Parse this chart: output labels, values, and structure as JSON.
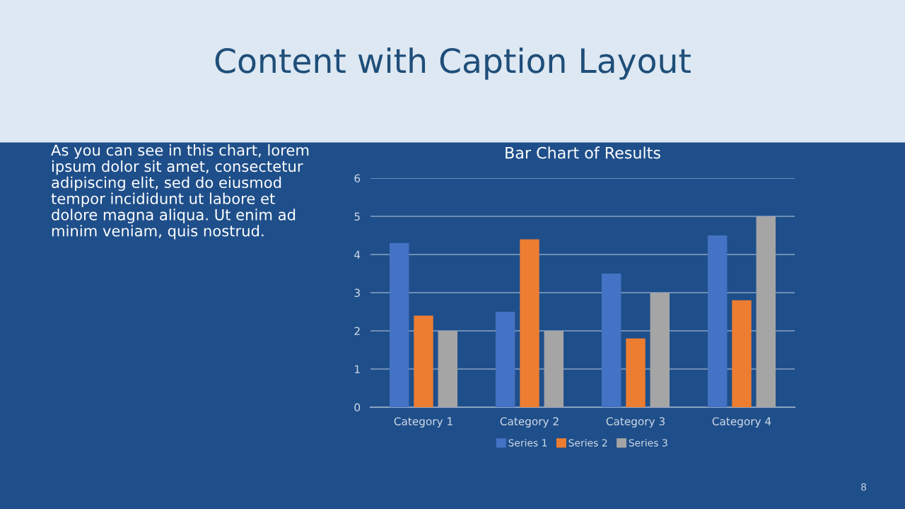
{
  "chart_data": {
    "type": "bar",
    "title": "Bar Chart of Results",
    "categories": [
      "Category 1",
      "Category 2",
      "Category 3",
      "Category 4"
    ],
    "series": [
      {
        "name": "Series 1",
        "color": "#4472c4",
        "values": [
          4.3,
          2.5,
          3.5,
          4.5
        ]
      },
      {
        "name": "Series 2",
        "color": "#ed7d31",
        "values": [
          2.4,
          4.4,
          1.8,
          2.8
        ]
      },
      {
        "name": "Series 3",
        "color": "#a5a5a5",
        "values": [
          2,
          2,
          3,
          5
        ]
      }
    ],
    "ylim": [
      0,
      6
    ],
    "yticks": [
      0,
      1,
      2,
      3,
      4,
      5,
      6
    ],
    "grid": "y",
    "legend": "bottom",
    "annotations": [
      "Content with Caption Layout",
      "As you can see in this chart, lorem\nipsum dolor sit amet, consectetur\nadipiscing elit, sed do eiusmod\ntempor incididunt ut labore et\ndolore magna aliqua. Ut enim ad\nminim veniam, quis nostrud.",
      "8"
    ]
  }
}
